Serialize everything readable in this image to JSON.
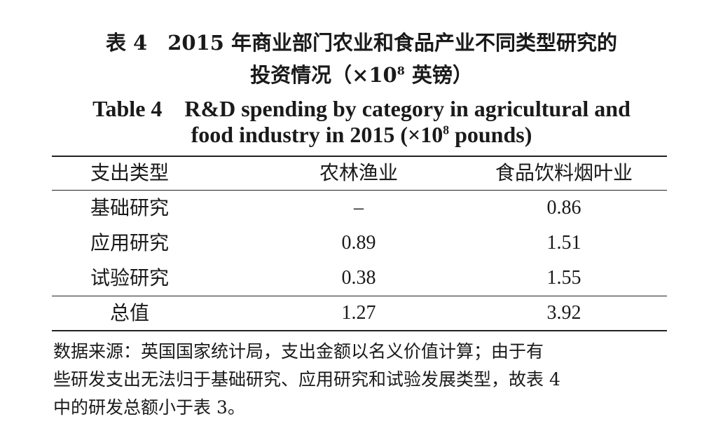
{
  "caption": {
    "zh_line1": "表 4　2015 年商业部门农业和食品产业不同类型研究的",
    "zh_line2_pre": "投资情况（×10",
    "zh_line2_sup": "8",
    "zh_line2_post": " 英镑）",
    "en_line1": "Table 4　R&D spending by category in agricultural and",
    "en_line2_pre": "food industry in 2015 (×10",
    "en_line2_sup": "8",
    "en_line2_post": " pounds)"
  },
  "table": {
    "headers": [
      "支出类型",
      "农林渔业",
      "食品饮料烟叶业"
    ],
    "rows": [
      {
        "type": "基础研究",
        "agri": "–",
        "food": "0.86"
      },
      {
        "type": "应用研究",
        "agri": "0.89",
        "food": "1.51"
      },
      {
        "type": "试验研究",
        "agri": "0.38",
        "food": "1.55"
      }
    ],
    "total": {
      "type": "总值",
      "agri": "1.27",
      "food": "3.92"
    }
  },
  "note": {
    "line1": "数据来源：英国国家统计局，支出金额以名义价值计算；由于有",
    "line2": "些研发支出无法归于基础研究、应用研究和试验发展类型，故表 4",
    "line3": "中的研发总额小于表 3。"
  }
}
